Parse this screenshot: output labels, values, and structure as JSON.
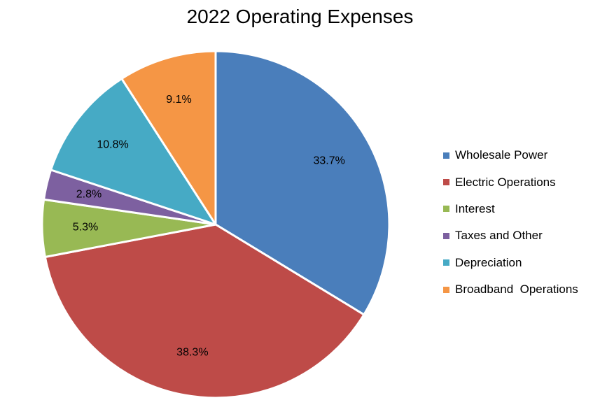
{
  "chart_data": {
    "type": "pie",
    "title": "2022 Operating Expenses",
    "legend_position": "right",
    "start": "12 o'clock, clockwise",
    "slices": [
      {
        "label": "Wholesale Power",
        "value": 33.7,
        "value_label": "33.7%",
        "color": "#4A7EBB"
      },
      {
        "label": "Electric Operations",
        "value": 38.3,
        "value_label": "38.3%",
        "color": "#BE4B48"
      },
      {
        "label": "Interest",
        "value": 5.3,
        "value_label": "5.3%",
        "color": "#98B954"
      },
      {
        "label": "Taxes and Other",
        "value": 2.8,
        "value_label": "2.8%",
        "color": "#7D60A0"
      },
      {
        "label": "Depreciation",
        "value": 10.8,
        "value_label": "10.8%",
        "color": "#46AAC5"
      },
      {
        "label": "Broadband  Operations",
        "value": 9.1,
        "value_label": "9.1%",
        "color": "#F59645"
      }
    ]
  }
}
